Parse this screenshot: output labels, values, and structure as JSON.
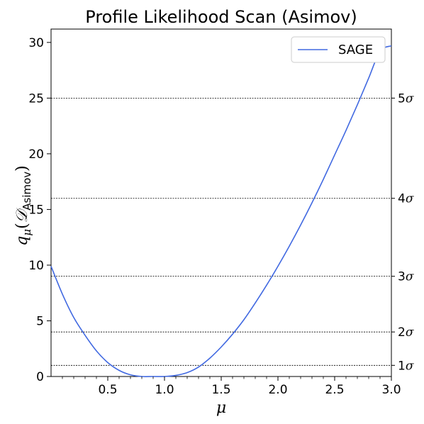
{
  "chart_data": {
    "type": "line",
    "title": "Profile Likelihood Scan (Asimov)",
    "xlabel": "μ",
    "ylabel": {
      "q": "q",
      "sub_mu": "μ",
      "open": "(",
      "calD": "𝒟",
      "sub_asimov": "Asimov",
      "close": ")"
    },
    "xlim": [
      0.0,
      3.0
    ],
    "ylim": [
      0,
      31.2
    ],
    "x_ticks": [
      0.5,
      1.0,
      1.5,
      2.0,
      2.5,
      3.0
    ],
    "x_tick_labels": [
      "0.5",
      "1.0",
      "1.5",
      "2.0",
      "2.5",
      "3.0"
    ],
    "x_minor_step": 0.1,
    "y_ticks": [
      0,
      5,
      10,
      15,
      20,
      25,
      30
    ],
    "y_tick_labels": [
      "0",
      "5",
      "10",
      "15",
      "20",
      "25",
      "30"
    ],
    "series": [
      {
        "name": "SAGE",
        "color": "#4169e1",
        "x": [
          0.0,
          0.1,
          0.2,
          0.3,
          0.4,
          0.5,
          0.6,
          0.7,
          0.8,
          0.9,
          1.0,
          1.1,
          1.2,
          1.3,
          1.4,
          1.5,
          1.6,
          1.7,
          1.8,
          1.9,
          2.0,
          2.1,
          2.2,
          2.3,
          2.4,
          2.5,
          2.6,
          2.7,
          2.8,
          2.9,
          3.0
        ],
        "y": [
          9.9,
          7.4,
          5.3,
          3.7,
          2.3,
          1.25,
          0.55,
          0.15,
          0.0,
          0.0,
          0.0,
          0.1,
          0.35,
          0.85,
          1.65,
          2.65,
          3.8,
          5.1,
          6.6,
          8.2,
          9.9,
          11.7,
          13.6,
          15.6,
          17.7,
          19.9,
          22.1,
          24.4,
          26.8,
          29.2,
          29.7
        ]
      }
    ],
    "significance_lines": [
      {
        "y": 1,
        "label": "1",
        "sigma": "σ"
      },
      {
        "y": 4,
        "label": "2",
        "sigma": "σ"
      },
      {
        "y": 9,
        "label": "3",
        "sigma": "σ"
      },
      {
        "y": 16,
        "label": "4",
        "sigma": "σ"
      },
      {
        "y": 25,
        "label": "5",
        "sigma": "σ"
      }
    ],
    "legend": {
      "placement": "upper right"
    },
    "grid": false
  }
}
